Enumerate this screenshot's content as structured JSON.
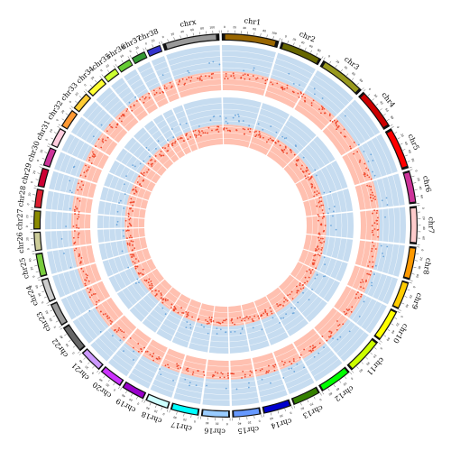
{
  "diagram": {
    "type": "circos",
    "chromosomes": [
      {
        "name": "chr1",
        "color": "#996600"
      },
      {
        "name": "chr2",
        "color": "#666600"
      },
      {
        "name": "chr3",
        "color": "#99991e"
      },
      {
        "name": "chr4",
        "color": "#cc0000"
      },
      {
        "name": "chr5",
        "color": "#ff0000"
      },
      {
        "name": "chr6",
        "color": "#cc3399"
      },
      {
        "name": "chr7",
        "color": "#ffcccc"
      },
      {
        "name": "chr8",
        "color": "#ff9900"
      },
      {
        "name": "chr9",
        "color": "#ffcc00"
      },
      {
        "name": "chr10",
        "color": "#ffff00"
      },
      {
        "name": "chr11",
        "color": "#ccff00"
      },
      {
        "name": "chr12",
        "color": "#00ff00"
      },
      {
        "name": "chr13",
        "color": "#358000"
      },
      {
        "name": "chr14",
        "color": "#0000cc"
      },
      {
        "name": "chr15",
        "color": "#6699ff"
      },
      {
        "name": "chr16",
        "color": "#99ccff"
      },
      {
        "name": "chr17",
        "color": "#00ffff"
      },
      {
        "name": "chr18",
        "color": "#ccffff"
      },
      {
        "name": "chr19",
        "color": "#9900cc"
      },
      {
        "name": "chr20",
        "color": "#cc33ff"
      },
      {
        "name": "chr21",
        "color": "#cc99ff"
      },
      {
        "name": "chr22",
        "color": "#666666"
      },
      {
        "name": "chr23",
        "color": "#999999"
      },
      {
        "name": "chr24",
        "color": "#cccccc"
      },
      {
        "name": "chr25",
        "color": "#79cc3d"
      },
      {
        "name": "chr26",
        "color": "#cccc99"
      },
      {
        "name": "chr27",
        "color": "#8b8b00"
      },
      {
        "name": "chr28",
        "color": "#dd1e2f"
      },
      {
        "name": "chr29",
        "color": "#cc0033"
      },
      {
        "name": "chr30",
        "color": "#cc3399"
      },
      {
        "name": "chr31",
        "color": "#ffccdd"
      },
      {
        "name": "chr32",
        "color": "#ff9933"
      },
      {
        "name": "chr33",
        "color": "#ffcc33"
      },
      {
        "name": "chr34",
        "color": "#ffff33"
      },
      {
        "name": "chr35",
        "color": "#ccff33"
      },
      {
        "name": "chr36",
        "color": "#66cc33"
      },
      {
        "name": "chr37",
        "color": "#339933"
      },
      {
        "name": "chr38",
        "color": "#3333cc"
      },
      {
        "name": "chrx",
        "color": "#999999"
      }
    ],
    "tracks": [
      {
        "upper_band_color": "#c6dcf0",
        "lower_band_color": "#ffc0b0",
        "upper_point_color": "#6fa8dc",
        "lower_point_color": "#ef4a2f"
      },
      {
        "upper_band_color": "#c6dcf0",
        "lower_band_color": "#ffc0b0",
        "upper_point_color": "#6fa8dc",
        "lower_point_color": "#ef4a2f"
      }
    ],
    "tick_labels": [
      "0",
      "20",
      "40",
      "60",
      "80",
      "100",
      "120"
    ]
  }
}
